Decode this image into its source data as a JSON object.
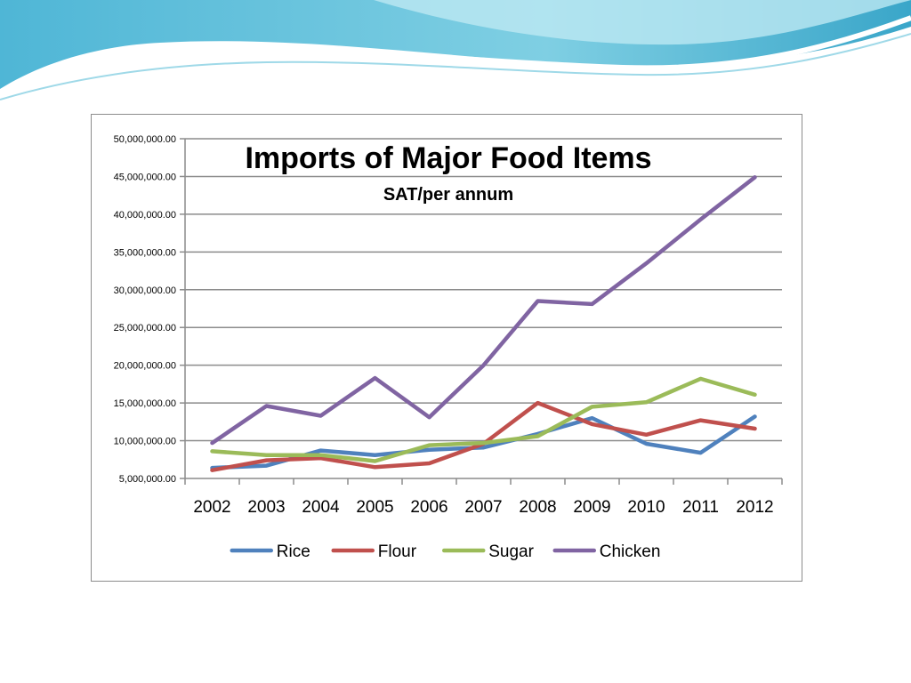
{
  "theme": {
    "banner_dark": "#3aa6c9",
    "banner_light": "#a6e0ec",
    "grid_color": "#8c8c8c"
  },
  "chart_data": {
    "type": "line",
    "title": "Imports of Major Food Items",
    "subtitle": "SAT/per annum",
    "xlabel": "",
    "ylabel": "",
    "x": [
      "2002",
      "2003",
      "2004",
      "2005",
      "2006",
      "2007",
      "2008",
      "2009",
      "2010",
      "2011",
      "2012"
    ],
    "ylim": [
      5000000,
      50000000
    ],
    "yticks": [
      5000000,
      10000000,
      15000000,
      20000000,
      25000000,
      30000000,
      35000000,
      40000000,
      45000000,
      50000000
    ],
    "ytick_labels": [
      "5,000,000.00",
      "10,000,000.00",
      "15,000,000.00",
      "20,000,000.00",
      "25,000,000.00",
      "30,000,000.00",
      "35,000,000.00",
      "40,000,000.00",
      "45,000,000.00",
      "50,000,000.00"
    ],
    "grid": true,
    "legend_position": "bottom",
    "series": [
      {
        "name": "Rice",
        "color": "#4f81bd",
        "values": [
          6400000,
          6700000,
          8700000,
          8100000,
          8800000,
          9100000,
          10900000,
          13000000,
          9600000,
          8400000,
          13200000
        ]
      },
      {
        "name": "Flour",
        "color": "#c0504d",
        "values": [
          6100000,
          7400000,
          7700000,
          6500000,
          7000000,
          9600000,
          15000000,
          12200000,
          10800000,
          12700000,
          11600000
        ]
      },
      {
        "name": "Sugar",
        "color": "#9bbb59",
        "values": [
          8600000,
          8100000,
          8100000,
          7300000,
          9400000,
          9700000,
          10600000,
          14500000,
          15100000,
          18200000,
          16100000
        ]
      },
      {
        "name": "Chicken",
        "color": "#8064a2",
        "values": [
          9700000,
          14600000,
          13300000,
          18300000,
          13100000,
          20000000,
          28500000,
          28100000,
          33500000,
          39300000,
          44900000
        ]
      }
    ]
  }
}
